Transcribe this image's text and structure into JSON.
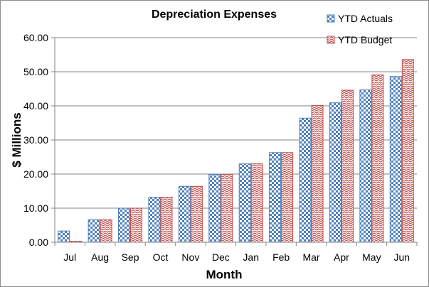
{
  "chart_data": {
    "type": "bar",
    "title": "Depreciation Expenses",
    "xlabel": "Month",
    "ylabel": "$ Millions",
    "categories": [
      "Jul",
      "Aug",
      "Sep",
      "Oct",
      "Nov",
      "Dec",
      "Jan",
      "Feb",
      "Mar",
      "Apr",
      "May",
      "Jun"
    ],
    "series": [
      {
        "name": "YTD Actuals",
        "color": "#4f81bd",
        "pattern": "checkerboard",
        "values": [
          3.3,
          6.6,
          10.0,
          13.2,
          16.4,
          19.9,
          23.0,
          26.3,
          36.4,
          40.9,
          44.7,
          48.6
        ]
      },
      {
        "name": "YTD Budget",
        "color": "#c0504d",
        "pattern": "zigzag",
        "values": [
          0.3,
          6.6,
          10.0,
          13.2,
          16.4,
          19.9,
          23.0,
          26.3,
          40.1,
          44.6,
          49.1,
          53.6
        ]
      }
    ],
    "ylim": [
      0,
      60
    ],
    "yticks": [
      "0.00",
      "10.00",
      "20.00",
      "30.00",
      "40.00",
      "50.00",
      "60.00"
    ],
    "grid": true,
    "legend_position": "top-right"
  }
}
